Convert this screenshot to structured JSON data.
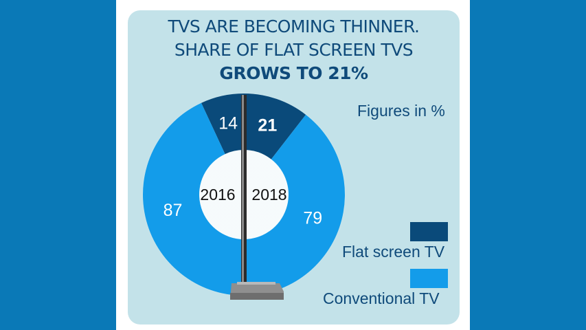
{
  "title": {
    "line1": "TVS ARE BECOMING THINNER.",
    "line2": "SHARE OF FLAT SCREEN TVS",
    "line3": "GROWS TO 21%"
  },
  "note": "Figures in %",
  "legend": [
    {
      "label": "Flat screen TV",
      "color": "#0a4a7a"
    },
    {
      "label": "Conventional TV",
      "color": "#139cea"
    }
  ],
  "chart_data": {
    "type": "pie",
    "title": "TVS ARE BECOMING THINNER. SHARE OF FLAT SCREEN TVS GROWS TO 21%",
    "unit": "Figures in %",
    "series_names": [
      "Flat screen TV",
      "Conventional TV"
    ],
    "charts": [
      {
        "label": "2016",
        "values": {
          "Flat screen TV": 14,
          "Conventional TV": 87
        }
      },
      {
        "label": "2018",
        "values": {
          "Flat screen TV": 21,
          "Conventional TV": 79
        }
      }
    ]
  },
  "colors": {
    "background": "#0a79b7",
    "card": "#c3e2e9",
    "flat": "#0a4a7a",
    "conventional": "#139cea",
    "text": "#0f4a7a"
  }
}
